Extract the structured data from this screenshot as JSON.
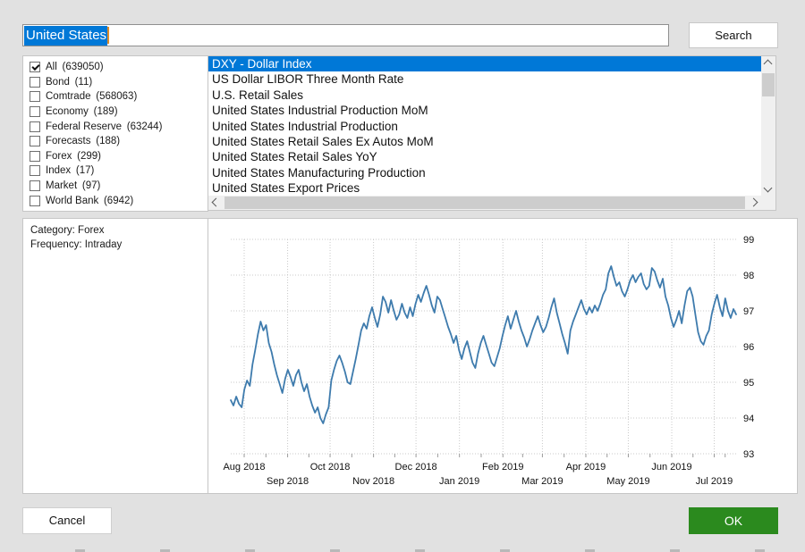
{
  "window": {
    "background": "#e1e1e1",
    "accent_blue": "#0078d7"
  },
  "search": {
    "value": "United States",
    "button_label": "Search"
  },
  "filters": {
    "items": [
      {
        "label": "All",
        "count": "639050",
        "checked": true
      },
      {
        "label": "Bond",
        "count": "11",
        "checked": false
      },
      {
        "label": "Comtrade",
        "count": "568063",
        "checked": false
      },
      {
        "label": "Economy",
        "count": "189",
        "checked": false
      },
      {
        "label": "Federal Reserve",
        "count": "63244",
        "checked": false
      },
      {
        "label": "Forecasts",
        "count": "188",
        "checked": false
      },
      {
        "label": "Forex",
        "count": "299",
        "checked": false
      },
      {
        "label": "Index",
        "count": "17",
        "checked": false
      },
      {
        "label": "Market",
        "count": "97",
        "checked": false
      },
      {
        "label": "World Bank",
        "count": "6942",
        "checked": false
      }
    ]
  },
  "results": {
    "selected_index": 0,
    "selected_color": "#0078d7",
    "items": [
      "DXY - Dollar Index",
      "US Dollar LIBOR Three Month Rate",
      "U.S. Retail Sales",
      "United States Industrial Production MoM",
      "United States Industrial Production",
      "United States Retail Sales Ex Autos MoM",
      "United States Retail Sales YoY",
      "United States Manufacturing Production",
      "United States Export Prices"
    ]
  },
  "info": {
    "category": "Category: Forex",
    "frequency": "Frequency: Intraday"
  },
  "icons": {
    "checked": "checkmark",
    "scroll_up": "chevron-up",
    "scroll_down": "chevron-down",
    "scroll_left": "chevron-left",
    "scroll_right": "chevron-right"
  },
  "actions": {
    "cancel_label": "Cancel",
    "ok_label": "OK",
    "ok_color": "#2b8a1e"
  },
  "chart_data": {
    "type": "line",
    "title": "DXY - Dollar Index",
    "xlabel": "",
    "ylabel": "",
    "ylim": [
      93,
      99
    ],
    "y_ticks": [
      93,
      94,
      95,
      96,
      97,
      98,
      99
    ],
    "y_axis_side": "right",
    "grid": "dotted",
    "line_color": "#3e7bad",
    "grid_color": "#c9c9c9",
    "x_ticks": [
      {
        "label": "Aug 2018",
        "f": 0.0,
        "row": 1
      },
      {
        "label": "Sep 2018",
        "f": 0.088,
        "row": 2
      },
      {
        "label": "Oct 2018",
        "f": 0.174,
        "row": 1
      },
      {
        "label": "Nov 2018",
        "f": 0.262,
        "row": 2
      },
      {
        "label": "Dec 2018",
        "f": 0.348,
        "row": 1
      },
      {
        "label": "Jan 2019",
        "f": 0.436,
        "row": 2
      },
      {
        "label": "Feb 2019",
        "f": 0.524,
        "row": 1
      },
      {
        "label": "Mar 2019",
        "f": 0.604,
        "row": 2
      },
      {
        "label": "Apr 2019",
        "f": 0.692,
        "row": 1
      },
      {
        "label": "May 2019",
        "f": 0.778,
        "row": 2
      },
      {
        "label": "Jun 2019",
        "f": 0.866,
        "row": 1
      },
      {
        "label": "Jul 2019",
        "f": 0.952,
        "row": 2
      }
    ],
    "values": [
      94.5,
      94.35,
      94.6,
      94.4,
      94.3,
      94.8,
      95.05,
      94.9,
      95.5,
      95.9,
      96.35,
      96.7,
      96.45,
      96.6,
      96.1,
      95.85,
      95.5,
      95.2,
      94.95,
      94.7,
      95.1,
      95.35,
      95.15,
      94.9,
      95.2,
      95.35,
      95.0,
      94.75,
      94.95,
      94.6,
      94.35,
      94.15,
      94.3,
      94.0,
      93.85,
      94.1,
      94.3,
      95.05,
      95.35,
      95.6,
      95.75,
      95.55,
      95.3,
      95.0,
      94.95,
      95.3,
      95.65,
      96.05,
      96.45,
      96.65,
      96.5,
      96.85,
      97.1,
      96.8,
      96.55,
      96.9,
      97.4,
      97.25,
      96.95,
      97.3,
      97.0,
      96.75,
      96.9,
      97.2,
      96.95,
      96.8,
      97.1,
      96.85,
      97.2,
      97.45,
      97.25,
      97.5,
      97.7,
      97.45,
      97.15,
      96.95,
      97.4,
      97.3,
      97.05,
      96.8,
      96.55,
      96.35,
      96.1,
      96.3,
      95.9,
      95.65,
      95.95,
      96.15,
      95.85,
      95.55,
      95.4,
      95.8,
      96.1,
      96.3,
      96.05,
      95.8,
      95.55,
      95.45,
      95.7,
      95.95,
      96.3,
      96.6,
      96.85,
      96.5,
      96.75,
      97.0,
      96.7,
      96.45,
      96.25,
      96.0,
      96.2,
      96.45,
      96.65,
      96.85,
      96.6,
      96.4,
      96.55,
      96.8,
      97.1,
      97.35,
      96.95,
      96.65,
      96.35,
      96.1,
      95.8,
      96.45,
      96.7,
      96.9,
      97.1,
      97.3,
      97.05,
      96.9,
      97.1,
      96.95,
      97.15,
      97.0,
      97.2,
      97.45,
      97.6,
      98.05,
      98.25,
      97.95,
      97.7,
      97.8,
      97.55,
      97.4,
      97.6,
      97.85,
      98.0,
      97.8,
      97.95,
      98.05,
      97.75,
      97.6,
      97.7,
      98.2,
      98.1,
      97.85,
      97.65,
      97.9,
      97.4,
      97.15,
      96.8,
      96.55,
      96.75,
      97.0,
      96.65,
      97.15,
      97.55,
      97.65,
      97.4,
      96.9,
      96.4,
      96.15,
      96.05,
      96.3,
      96.45,
      96.9,
      97.2,
      97.45,
      97.1,
      96.85,
      97.35,
      97.0,
      96.8,
      97.05,
      96.9
    ]
  }
}
